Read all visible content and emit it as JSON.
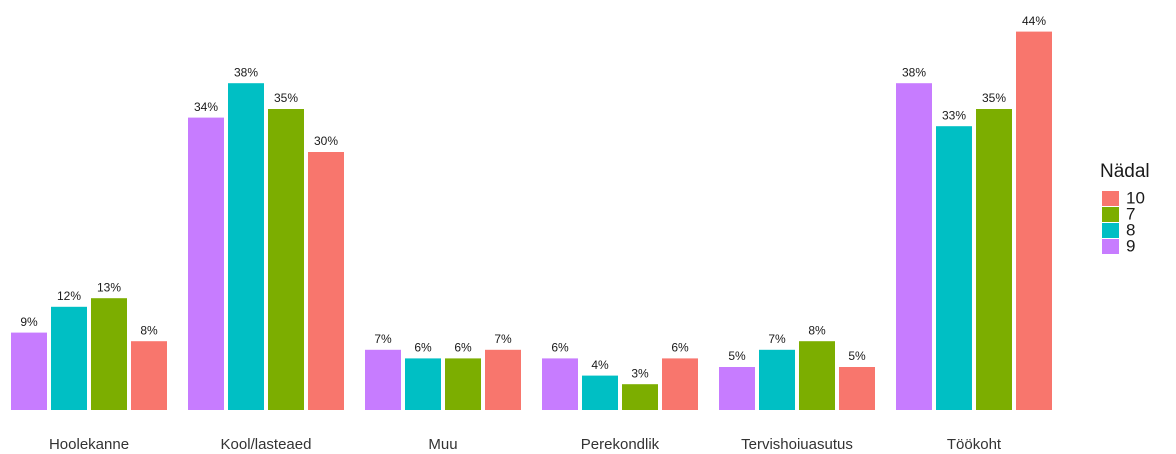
{
  "chart_data": {
    "type": "bar",
    "categories": [
      "Hoolekanne",
      "Kool/lasteaed",
      "Muu",
      "Perekondlik",
      "Tervishoiuasutus",
      "Töökoht"
    ],
    "legend_title": "Nädal",
    "legend": "right",
    "series": [
      {
        "name": "10",
        "color": "#f8766d",
        "values": [
          8,
          30,
          7,
          6,
          5,
          44
        ],
        "value_labels": [
          "8%",
          "30%",
          "7%",
          "6%",
          "5%",
          "44%"
        ]
      },
      {
        "name": "7",
        "color": "#7cae00",
        "values": [
          13,
          35,
          6,
          3,
          8,
          35
        ],
        "value_labels": [
          "13%",
          "35%",
          "6%",
          "3%",
          "8%",
          "35%"
        ]
      },
      {
        "name": "8",
        "color": "#00bfc4",
        "values": [
          12,
          38,
          6,
          4,
          7,
          33
        ],
        "value_labels": [
          "12%",
          "38%",
          "6%",
          "4%",
          "7%",
          "33%"
        ]
      },
      {
        "name": "9",
        "color": "#c77cff",
        "values": [
          9,
          34,
          7,
          6,
          5,
          38
        ],
        "value_labels": [
          "9%",
          "34%",
          "7%",
          "6%",
          "5%",
          "38%"
        ]
      }
    ]
  }
}
